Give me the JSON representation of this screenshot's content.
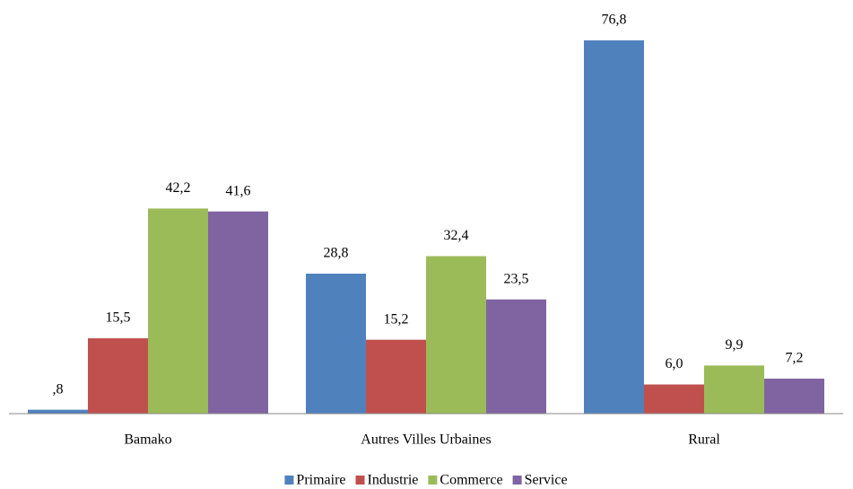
{
  "chart_data": {
    "type": "bar",
    "categories": [
      "Bamako",
      "Autres Villes Urbaines",
      "Rural"
    ],
    "series": [
      {
        "name": "Primaire",
        "color": "#4f81bd",
        "values": [
          0.8,
          28.8,
          76.8
        ],
        "value_labels": [
          ",8",
          "28,8",
          "76,8"
        ]
      },
      {
        "name": "Industrie",
        "color": "#c0504d",
        "values": [
          15.5,
          15.2,
          6.0
        ],
        "value_labels": [
          "15,5",
          "15,2",
          "6,0"
        ]
      },
      {
        "name": "Commerce",
        "color": "#9bbb59",
        "values": [
          42.2,
          32.4,
          9.9
        ],
        "value_labels": [
          "42,2",
          "32,4",
          "9,9"
        ]
      },
      {
        "name": "Service",
        "color": "#8064a2",
        "values": [
          41.6,
          23.5,
          7.2
        ],
        "value_labels": [
          "41,6",
          "23,5",
          "7,2"
        ]
      }
    ],
    "legend": "bottom"
  }
}
